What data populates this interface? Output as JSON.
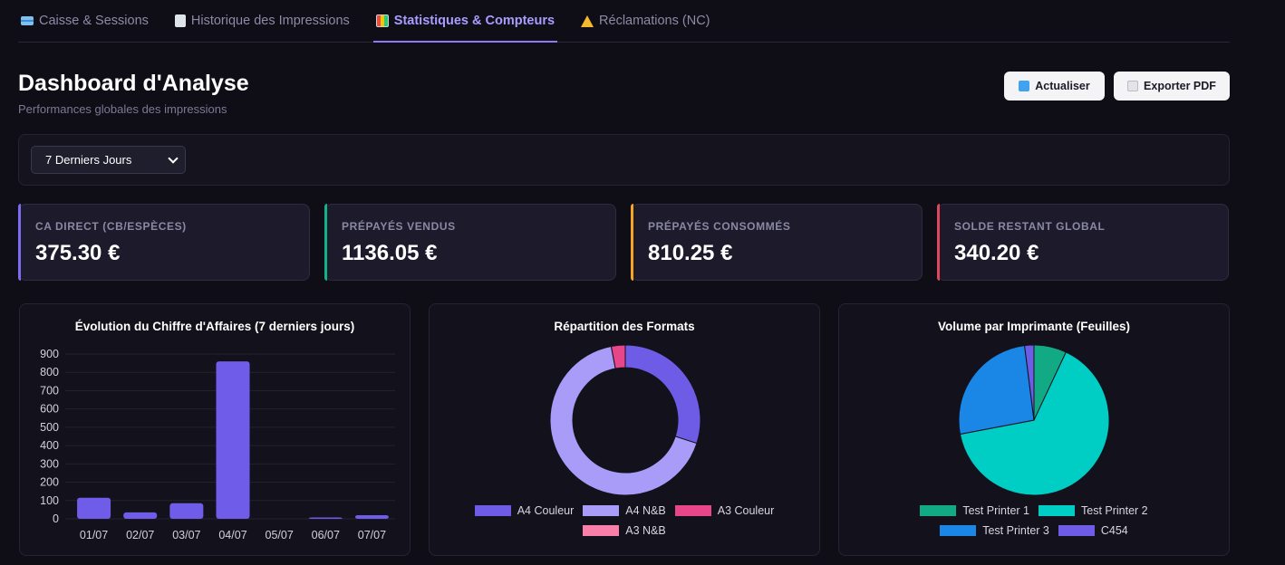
{
  "tabs": [
    {
      "label": "Caisse & Sessions",
      "icon": "credit-card-icon"
    },
    {
      "label": "Historique des Impressions",
      "icon": "document-icon"
    },
    {
      "label": "Statistiques & Compteurs",
      "icon": "bar-chart-icon",
      "active": true
    },
    {
      "label": "Réclamations (NC)",
      "icon": "warning-icon"
    }
  ],
  "header": {
    "title": "Dashboard d'Analyse",
    "subtitle": "Performances globales des impressions",
    "refresh_label": "Actualiser",
    "export_label": "Exporter PDF"
  },
  "filter": {
    "period": "7 Derniers Jours"
  },
  "kpis": [
    {
      "label": "CA DIRECT (CB/ESPÈCES)",
      "value": "375.30 €",
      "color": "#7c6cf2"
    },
    {
      "label": "PRÉPAYÉS VENDUS",
      "value": "1136.05 €",
      "color": "#10b38a"
    },
    {
      "label": "PRÉPAYÉS CONSOMMÉS",
      "value": "810.25 €",
      "color": "#f5a623"
    },
    {
      "label": "SOLDE RESTANT GLOBAL",
      "value": "340.20 €",
      "color": "#e0475b"
    }
  ],
  "chart_data": [
    {
      "type": "bar",
      "title": "Évolution du Chiffre d'Affaires (7 derniers jours)",
      "categories": [
        "01/07",
        "02/07",
        "03/07",
        "04/07",
        "05/07",
        "06/07",
        "07/07"
      ],
      "values": [
        115,
        35,
        85,
        860,
        0,
        5,
        20
      ],
      "yticks": [
        0,
        100,
        200,
        300,
        400,
        500,
        600,
        700,
        800,
        900
      ],
      "ylim": [
        0,
        900
      ],
      "color": "#6f5ce8",
      "grid": true
    },
    {
      "type": "pie",
      "variant": "doughnut",
      "title": "Répartition des Formats",
      "labels": [
        "A4 Couleur",
        "A4 N&B",
        "A3 Couleur",
        "A3 N&B"
      ],
      "values": [
        30,
        67,
        3,
        0
      ],
      "colors": [
        "#6e5be6",
        "#a89cf8",
        "#e8468b",
        "#f97fa8"
      ],
      "legend": "bottom"
    },
    {
      "type": "pie",
      "title": "Volume par Imprimante (Feuilles)",
      "labels": [
        "Test Printer 1",
        "Test Printer 2",
        "Test Printer 3",
        "C454"
      ],
      "values": [
        7,
        65,
        26,
        2
      ],
      "colors": [
        "#12aa85",
        "#00cdc4",
        "#1a86e6",
        "#6e5be6"
      ],
      "legend": "bottom"
    }
  ]
}
